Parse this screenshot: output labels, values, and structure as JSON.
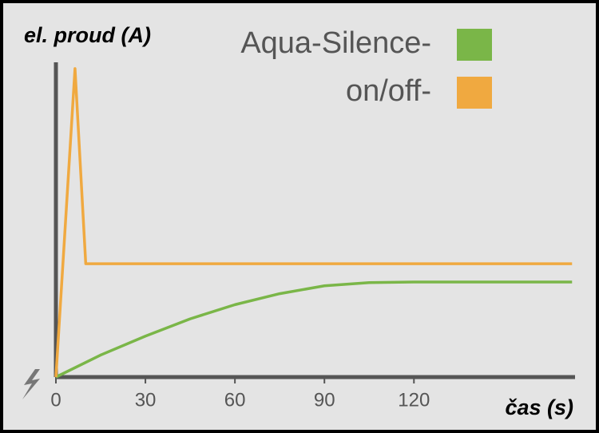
{
  "chart_data": {
    "type": "line",
    "y_label": "el. proud (A)",
    "x_label": "čas (s)",
    "xlim": [
      0,
      174
    ],
    "xticks": [
      0,
      30,
      60,
      90,
      120
    ],
    "ylim": [
      0,
      100
    ],
    "legend": "top-right",
    "series": [
      {
        "name": "Aqua-Silence-",
        "color": "#7ab648",
        "x": [
          0,
          15,
          30,
          45,
          60,
          75,
          90,
          105,
          120,
          173
        ],
        "values": [
          0,
          7,
          13,
          18.5,
          23,
          26.5,
          29,
          30,
          30.2,
          30.2
        ]
      },
      {
        "name": "on/off-",
        "color": "#f0a940",
        "x": [
          0,
          6.4,
          10,
          173
        ],
        "values": [
          0,
          98,
          36,
          36
        ]
      }
    ]
  }
}
